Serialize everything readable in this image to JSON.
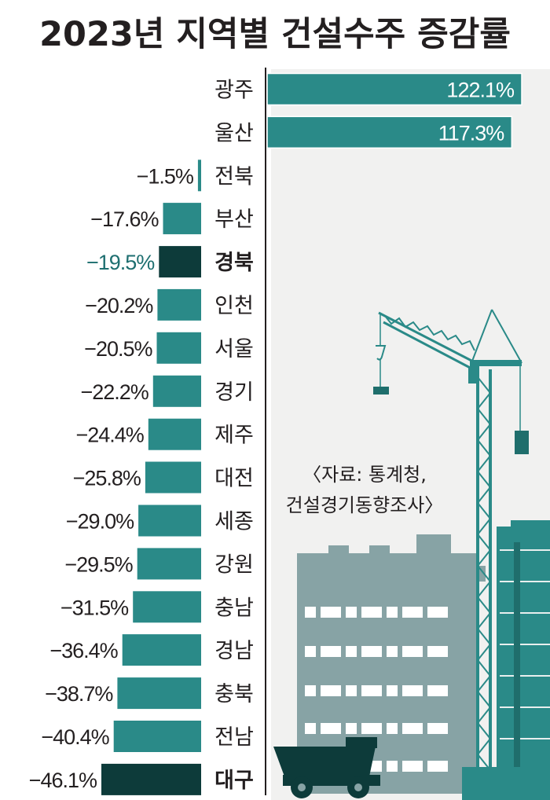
{
  "colors": {
    "bar": "#2a8a88",
    "bar_highlight": "#0d3b3a",
    "background_panel": "#f1f1f0",
    "building": "#87a3a5",
    "building_dark": "#2a8a88",
    "crane": "#2a8a88",
    "text": "#231f20"
  },
  "chart_data": {
    "type": "bar",
    "orientation": "horizontal",
    "title": "2023년 지역별 건설수주 증감률",
    "unit": "%",
    "categories": [
      "광주",
      "울산",
      "전북",
      "부산",
      "경북",
      "인천",
      "서울",
      "경기",
      "제주",
      "대전",
      "세종",
      "강원",
      "충남",
      "경남",
      "충북",
      "전남",
      "대구"
    ],
    "values": [
      122.1,
      117.3,
      -1.5,
      -17.6,
      -19.5,
      -20.2,
      -20.5,
      -22.2,
      -24.4,
      -25.8,
      -29.0,
      -29.5,
      -31.5,
      -36.4,
      -38.7,
      -40.4,
      -46.1
    ],
    "value_labels": [
      "122.1%",
      "117.3%",
      "−1.5%",
      "−17.6%",
      "−19.5%",
      "−20.2%",
      "−20.5%",
      "−22.2%",
      "−24.4%",
      "−25.8%",
      "−29.0%",
      "−29.5%",
      "−31.5%",
      "−36.4%",
      "−38.7%",
      "−40.4%",
      "−46.1%"
    ],
    "highlighted": [
      "경북",
      "대구"
    ],
    "source": [
      "〈자료: 통계청,",
      "건설경기동향조사〉"
    ]
  }
}
